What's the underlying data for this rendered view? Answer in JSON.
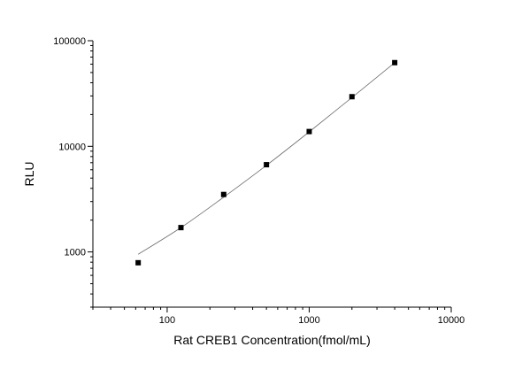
{
  "chart_data": {
    "type": "scatter",
    "title": "",
    "xlabel": "Rat CREB1 Concentration(fmol/mL)",
    "ylabel": "RLU",
    "x_scale": "log",
    "y_scale": "log",
    "xlim": [
      30,
      10000
    ],
    "ylim": [
      300,
      100000
    ],
    "x_tick_labels": [
      "100",
      "1000",
      "10000"
    ],
    "y_tick_labels": [
      "1000",
      "10000",
      "100000"
    ],
    "grid": false,
    "legend": "none",
    "series": [
      {
        "points": [
          {
            "x": 62.5,
            "y": 790
          },
          {
            "x": 125,
            "y": 1700
          },
          {
            "x": 250,
            "y": 3500
          },
          {
            "x": 500,
            "y": 6700
          },
          {
            "x": 1000,
            "y": 13800
          },
          {
            "x": 2000,
            "y": 29500
          },
          {
            "x": 4000,
            "y": 62000
          }
        ],
        "fit_curve": [
          {
            "x": 62.5,
            "y": 950
          },
          {
            "x": 125,
            "y": 1700
          },
          {
            "x": 250,
            "y": 3300
          },
          {
            "x": 500,
            "y": 6600
          },
          {
            "x": 1000,
            "y": 13700
          },
          {
            "x": 2000,
            "y": 29000
          },
          {
            "x": 4000,
            "y": 62000
          }
        ]
      }
    ],
    "colors": {
      "marker": "#000000",
      "curve": "#6e6e6e",
      "axis": "#000000"
    }
  }
}
